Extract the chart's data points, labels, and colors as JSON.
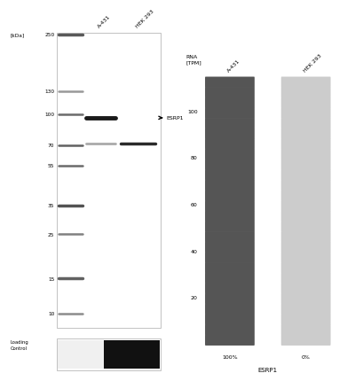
{
  "wb_ladder_labels": [
    "250",
    "130",
    "100",
    "70",
    "55",
    "35",
    "25",
    "15",
    "10"
  ],
  "wb_ladder_positions": [
    250,
    130,
    100,
    70,
    55,
    35,
    25,
    15,
    10
  ],
  "wb_ladder_intensities": [
    0.35,
    0.6,
    0.42,
    0.38,
    0.42,
    0.32,
    0.5,
    0.38,
    0.55
  ],
  "wb_ladder_widths": [
    2.5,
    1.8,
    1.8,
    1.8,
    1.8,
    2.5,
    1.8,
    2.5,
    1.8
  ],
  "wb_col_labels": [
    "A-431",
    "HEK 293"
  ],
  "wb_band_label": "ESRP1",
  "loading_label": "Loading\nControl",
  "rna_col_labels": [
    "A-431",
    "HEK 293"
  ],
  "rna_y_ticks": [
    20,
    40,
    60,
    80,
    100
  ],
  "rna_n_blocks": 26,
  "rna_dark_color": "#555555",
  "rna_light_color": "#cccccc",
  "rna_pct_labels": [
    "100%",
    "0%"
  ],
  "rna_gene_label": "ESRP1",
  "rna_ylabel": "RNA\n[TPM]"
}
